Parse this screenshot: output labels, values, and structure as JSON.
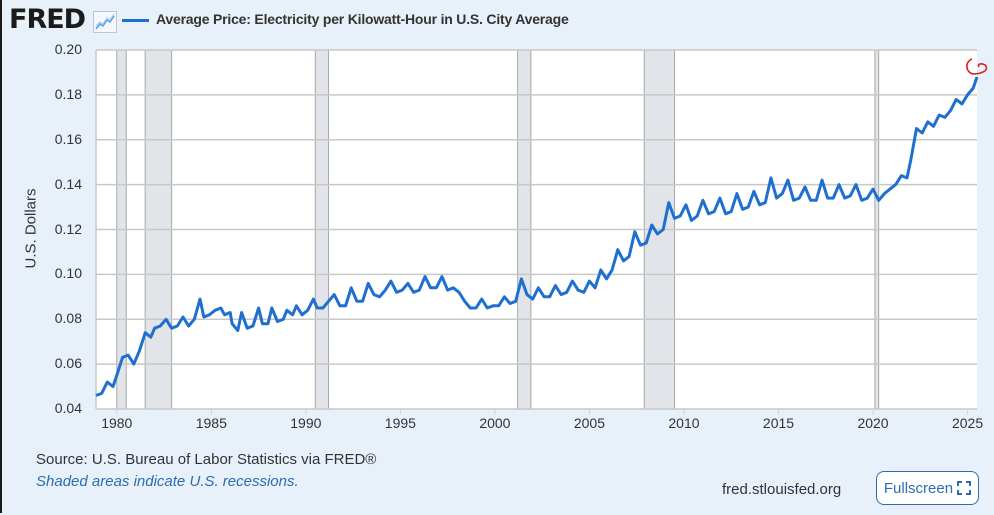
{
  "header": {
    "logo_text": "FRED",
    "series_title": "Average Price: Electricity per Kilowatt-Hour in U.S. City Average"
  },
  "footer": {
    "source": "Source: U.S. Bureau of Labor Statistics via FRED®",
    "note": "Shaded areas indicate U.S. recessions.",
    "site": "fred.stlouisfed.org",
    "fullscreen_label": "Fullscreen"
  },
  "colors": {
    "line": "#1f6fd0",
    "recession": "#e1e5ea",
    "grid": "#c8c8c8",
    "annotation": "#e02020"
  },
  "icons": {
    "logo_chart": "line-chart-icon",
    "fullscreen": "expand-icon"
  },
  "chart_data": {
    "type": "line",
    "title": "Average Price: Electricity per Kilowatt-Hour in U.S. City Average",
    "xlabel": "",
    "ylabel": "U.S. Dollars",
    "xlim": [
      1978.9,
      2025.5
    ],
    "ylim": [
      0.04,
      0.2
    ],
    "grid": true,
    "y_ticks": [
      "0.04",
      "0.06",
      "0.08",
      "0.10",
      "0.12",
      "0.14",
      "0.16",
      "0.18",
      "0.20"
    ],
    "x_ticks": [
      "1980",
      "1985",
      "1990",
      "1995",
      "2000",
      "2005",
      "2010",
      "2015",
      "2020",
      "2025"
    ],
    "legend": "top-left",
    "recessions": [
      [
        1980.0,
        1980.5
      ],
      [
        1981.5,
        1982.9
      ],
      [
        1990.5,
        1991.2
      ],
      [
        2001.2,
        2001.9
      ],
      [
        2007.9,
        2009.5
      ],
      [
        2020.1,
        2020.3
      ]
    ],
    "series": [
      {
        "name": "Average Price: Electricity per Kilowatt-Hour in U.S. City Average",
        "x": [
          1978.9,
          1979.2,
          1979.5,
          1979.8,
          1980.0,
          1980.3,
          1980.6,
          1980.9,
          1981.2,
          1981.5,
          1981.8,
          1982.0,
          1982.3,
          1982.6,
          1982.9,
          1983.2,
          1983.5,
          1983.8,
          1984.1,
          1984.4,
          1984.6,
          1984.9,
          1985.2,
          1985.5,
          1985.7,
          1986.0,
          1986.1,
          1986.4,
          1986.6,
          1986.9,
          1987.2,
          1987.5,
          1987.7,
          1988.0,
          1988.2,
          1988.5,
          1988.8,
          1989.0,
          1989.3,
          1989.5,
          1989.8,
          1990.1,
          1990.4,
          1990.6,
          1990.9,
          1991.2,
          1991.5,
          1991.8,
          1992.1,
          1992.4,
          1992.7,
          1993.0,
          1993.3,
          1993.6,
          1993.9,
          1994.2,
          1994.5,
          1994.8,
          1995.1,
          1995.4,
          1995.7,
          1996.0,
          1996.3,
          1996.6,
          1996.9,
          1997.2,
          1997.5,
          1997.8,
          1998.1,
          1998.4,
          1998.7,
          1999.0,
          1999.3,
          1999.6,
          1999.9,
          2000.2,
          2000.5,
          2000.8,
          2001.1,
          2001.4,
          2001.7,
          2002.0,
          2002.3,
          2002.6,
          2002.9,
          2003.2,
          2003.5,
          2003.8,
          2004.1,
          2004.4,
          2004.7,
          2005.0,
          2005.3,
          2005.6,
          2005.9,
          2006.2,
          2006.5,
          2006.8,
          2007.1,
          2007.4,
          2007.7,
          2008.0,
          2008.3,
          2008.6,
          2008.9,
          2009.2,
          2009.5,
          2009.8,
          2010.1,
          2010.4,
          2010.7,
          2011.0,
          2011.3,
          2011.6,
          2011.9,
          2012.2,
          2012.5,
          2012.8,
          2013.1,
          2013.4,
          2013.7,
          2014.0,
          2014.3,
          2014.6,
          2014.9,
          2015.2,
          2015.5,
          2015.8,
          2016.1,
          2016.4,
          2016.7,
          2017.0,
          2017.3,
          2017.6,
          2017.9,
          2018.2,
          2018.5,
          2018.8,
          2019.1,
          2019.4,
          2019.7,
          2020.0,
          2020.3,
          2020.6,
          2020.9,
          2021.2,
          2021.5,
          2021.8,
          2022.0,
          2022.3,
          2022.6,
          2022.9,
          2023.2,
          2023.5,
          2023.8,
          2024.1,
          2024.4,
          2024.7,
          2025.0,
          2025.3,
          2025.5
        ],
        "y": [
          0.046,
          0.047,
          0.052,
          0.05,
          0.055,
          0.063,
          0.064,
          0.06,
          0.066,
          0.074,
          0.072,
          0.076,
          0.077,
          0.08,
          0.076,
          0.077,
          0.081,
          0.077,
          0.08,
          0.089,
          0.081,
          0.082,
          0.084,
          0.085,
          0.082,
          0.083,
          0.078,
          0.075,
          0.083,
          0.076,
          0.077,
          0.085,
          0.078,
          0.078,
          0.085,
          0.079,
          0.08,
          0.084,
          0.082,
          0.086,
          0.082,
          0.084,
          0.089,
          0.085,
          0.085,
          0.088,
          0.091,
          0.086,
          0.086,
          0.094,
          0.088,
          0.088,
          0.096,
          0.091,
          0.09,
          0.093,
          0.097,
          0.092,
          0.093,
          0.096,
          0.092,
          0.093,
          0.099,
          0.094,
          0.094,
          0.099,
          0.093,
          0.094,
          0.092,
          0.088,
          0.085,
          0.085,
          0.089,
          0.085,
          0.086,
          0.086,
          0.09,
          0.087,
          0.088,
          0.098,
          0.091,
          0.089,
          0.094,
          0.09,
          0.09,
          0.095,
          0.091,
          0.092,
          0.097,
          0.093,
          0.092,
          0.097,
          0.094,
          0.102,
          0.098,
          0.102,
          0.111,
          0.106,
          0.108,
          0.119,
          0.113,
          0.114,
          0.122,
          0.118,
          0.12,
          0.132,
          0.125,
          0.126,
          0.131,
          0.124,
          0.126,
          0.133,
          0.127,
          0.128,
          0.134,
          0.127,
          0.128,
          0.136,
          0.129,
          0.13,
          0.137,
          0.131,
          0.132,
          0.143,
          0.134,
          0.136,
          0.142,
          0.133,
          0.134,
          0.139,
          0.133,
          0.133,
          0.142,
          0.134,
          0.134,
          0.14,
          0.134,
          0.135,
          0.14,
          0.133,
          0.134,
          0.138,
          0.133,
          0.136,
          0.138,
          0.14,
          0.144,
          0.143,
          0.151,
          0.165,
          0.163,
          0.168,
          0.166,
          0.171,
          0.17,
          0.173,
          0.178,
          0.176,
          0.18,
          0.183,
          0.188
        ]
      }
    ]
  }
}
